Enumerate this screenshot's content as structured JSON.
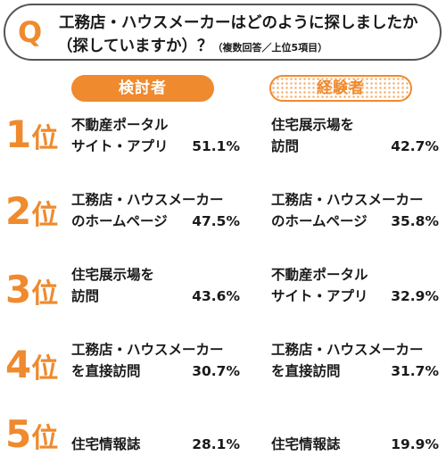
{
  "question": {
    "mark": "Q",
    "line1": "工務店・ハウスメーカーはどのように探しましたか",
    "line2": "（探していますか）？",
    "note": "（複数回答／上位5項目）"
  },
  "columns": {
    "a": "検討者",
    "b": "経験者"
  },
  "rank_unit": "位",
  "ranks": [
    {
      "num": "1",
      "a": {
        "line1": "不動産ポータル",
        "line2": "サイト・アプリ",
        "pct": "51.1%"
      },
      "b": {
        "line1": "住宅展示場を",
        "line2": "訪問",
        "pct": "42.7%"
      }
    },
    {
      "num": "2",
      "a": {
        "line1": "工務店・ハウスメーカー",
        "line2": "のホームページ",
        "pct": "47.5%"
      },
      "b": {
        "line1": "工務店・ハウスメーカー",
        "line2": "のホームページ",
        "pct": "35.8%"
      }
    },
    {
      "num": "3",
      "a": {
        "line1": "住宅展示場を",
        "line2": "訪問",
        "pct": "43.6%"
      },
      "b": {
        "line1": "不動産ポータル",
        "line2": "サイト・アプリ",
        "pct": "32.9%"
      }
    },
    {
      "num": "4",
      "a": {
        "line1": "工務店・ハウスメーカー",
        "line2": "を直接訪問",
        "pct": "30.7%"
      },
      "b": {
        "line1": "工務店・ハウスメーカー",
        "line2": "を直接訪問",
        "pct": "31.7%"
      }
    },
    {
      "num": "5",
      "a": {
        "line1": "",
        "line2": "住宅情報誌",
        "pct": "28.1%"
      },
      "b": {
        "line1": "",
        "line2": "住宅情報誌",
        "pct": "19.9%"
      }
    }
  ],
  "colors": {
    "accent": "#ef8a2e",
    "text": "#1a1a1a",
    "border": "#555555"
  }
}
